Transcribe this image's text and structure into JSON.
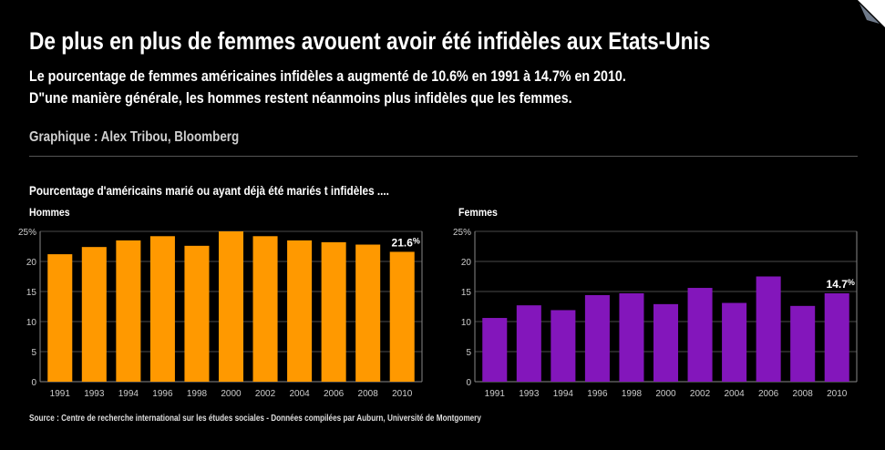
{
  "header": {
    "title": "De plus en plus de femmes avouent avoir été infidèles aux Etats-Unis",
    "subtitle_line1": "Le pourcentage de femmes américaines infidèles a augmenté de 10.6% en 1991 à 14.7% en 2010.",
    "subtitle_line2": "D\"une manière générale, les hommes restent néanmoins plus infidèles que les femmes.",
    "credit": "Graphique : Alex Tribou, Bloomberg"
  },
  "caption": "Pourcentage d'américains marié ou ayant déjà été mariés t infidèles ....",
  "source": "Source : Centre de recherche international sur les études sociales - Données compilées par Auburn, Université de Montgomery",
  "colors": {
    "men": "#FF9900",
    "women": "#8316BB",
    "grid": "#4a4a4a",
    "axis": "#888888"
  },
  "chart_data": [
    {
      "type": "bar",
      "title": "Hommes",
      "categories": [
        "1991",
        "1993",
        "1994",
        "1996",
        "1998",
        "2000",
        "2002",
        "2004",
        "2006",
        "2008",
        "2010"
      ],
      "values": [
        21.2,
        22.4,
        23.5,
        24.2,
        22.6,
        25.0,
        24.2,
        23.5,
        23.2,
        22.8,
        21.6
      ],
      "ylim": [
        0,
        25
      ],
      "yticks": [
        "0",
        "5",
        "10",
        "15",
        "20",
        "25%"
      ],
      "annotation": {
        "category": "2010",
        "text": "21.6",
        "unit": "%"
      },
      "grid": true
    },
    {
      "type": "bar",
      "title": "Femmes",
      "categories": [
        "1991",
        "1993",
        "1994",
        "1996",
        "1998",
        "2000",
        "2002",
        "2004",
        "2006",
        "2008",
        "2010"
      ],
      "values": [
        10.6,
        12.7,
        11.9,
        14.4,
        14.7,
        12.9,
        15.6,
        13.1,
        17.5,
        12.6,
        14.7
      ],
      "ylim": [
        0,
        25
      ],
      "yticks": [
        "0",
        "5",
        "10",
        "15",
        "20",
        "25%"
      ],
      "annotation": {
        "category": "2010",
        "text": "14.7",
        "unit": "%"
      },
      "grid": true
    }
  ]
}
